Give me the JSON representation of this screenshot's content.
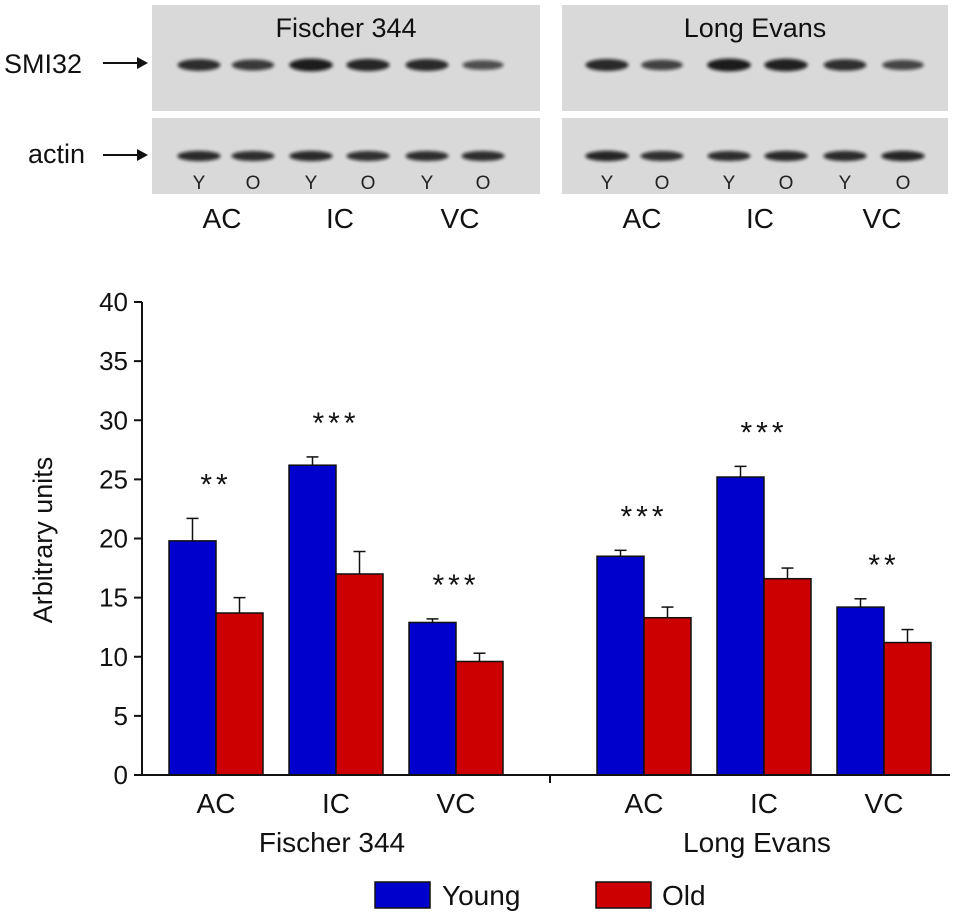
{
  "blot": {
    "strains": [
      "Fischer 344",
      "Long Evans"
    ],
    "row_labels": [
      "SMI32",
      "actin"
    ],
    "lanes": [
      "Y",
      "O",
      "Y",
      "O",
      "Y",
      "O"
    ],
    "regions": [
      "AC",
      "IC",
      "VC"
    ],
    "smi32_intensity": [
      [
        0.82,
        0.72,
        0.95,
        0.88,
        0.85,
        0.55
      ],
      [
        0.85,
        0.65,
        0.97,
        0.92,
        0.8,
        0.62
      ]
    ],
    "actin_intensity": [
      [
        0.85,
        0.82,
        0.85,
        0.8,
        0.82,
        0.82
      ],
      [
        0.88,
        0.8,
        0.82,
        0.85,
        0.84,
        0.88
      ]
    ]
  },
  "chart_data": {
    "type": "bar",
    "ylabel": "Arbitrary units",
    "ylim": [
      0,
      40
    ],
    "yticks": [
      0,
      5,
      10,
      15,
      20,
      25,
      30,
      35,
      40
    ],
    "legend_position": "bottom",
    "colors": {
      "Young": "#0000cc",
      "Old": "#cc0000"
    },
    "groups": [
      {
        "name": "Fischer 344",
        "categories": [
          "AC",
          "IC",
          "VC"
        ],
        "young": [
          19.8,
          26.2,
          12.9
        ],
        "young_err": [
          1.9,
          0.7,
          0.3
        ],
        "old": [
          13.7,
          17.0,
          9.6
        ],
        "old_err": [
          1.3,
          1.9,
          0.7
        ],
        "significance": [
          "**",
          "***",
          "***"
        ]
      },
      {
        "name": "Long Evans",
        "categories": [
          "AC",
          "IC",
          "VC"
        ],
        "young": [
          18.5,
          25.2,
          14.2
        ],
        "young_err": [
          0.5,
          0.9,
          0.7
        ],
        "old": [
          13.3,
          16.6,
          11.2
        ],
        "old_err": [
          0.9,
          0.9,
          1.1
        ],
        "significance": [
          "***",
          "***",
          "**"
        ]
      }
    ],
    "legend": [
      "Young",
      "Old"
    ]
  }
}
